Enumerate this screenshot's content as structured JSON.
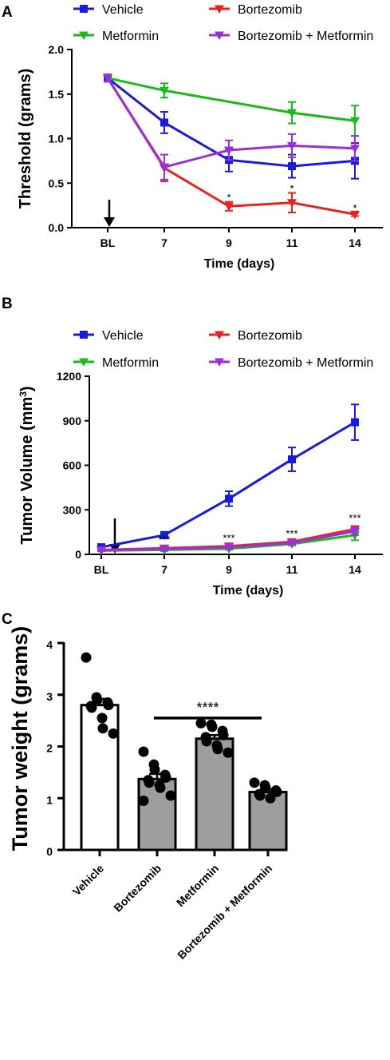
{
  "chart_data": [
    {
      "panel": "A",
      "type": "line",
      "categories": [
        "BL",
        "7",
        "9",
        "11",
        "14"
      ],
      "xlabel": "Time (days)",
      "ylabel": "Threshold (grams)",
      "ylim": [
        0,
        2.0
      ],
      "yticks": [
        0.0,
        0.5,
        1.0,
        1.5,
        2.0
      ],
      "ytick_labels": [
        "0.0",
        "0.5",
        "1.0",
        "1.5",
        "2.0"
      ],
      "legend": "top",
      "arrow_at": "BL",
      "series": [
        {
          "name": "Vehicle",
          "color": "#1a1adb",
          "marker": "square",
          "values": [
            1.68,
            1.18,
            0.76,
            0.69,
            0.75
          ],
          "errors": [
            0.04,
            0.12,
            0.13,
            0.13,
            0.2
          ]
        },
        {
          "name": "Bortezomib",
          "color": "#e8231f",
          "marker": "triangle-down",
          "values": [
            1.68,
            0.67,
            0.24,
            0.28,
            0.15
          ],
          "errors": [
            0.04,
            0.15,
            0.05,
            0.11,
            0.02
          ]
        },
        {
          "name": "Metformin",
          "color": "#1db81d",
          "marker": "triangle-down",
          "values": [
            1.68,
            1.54,
            null,
            1.29,
            1.2
          ],
          "errors": [
            0.04,
            0.08,
            null,
            0.12,
            0.17
          ]
        },
        {
          "name": "Bortezomib + Metformin",
          "color": "#9b30d9",
          "marker": "triangle-down",
          "values": [
            1.68,
            0.68,
            0.87,
            0.92,
            0.89
          ],
          "errors": [
            0.04,
            0.14,
            0.11,
            0.13,
            0.14
          ]
        }
      ],
      "annotations": [
        {
          "x": "9",
          "y": 0.3,
          "text": "*"
        },
        {
          "x": "11",
          "y": 0.4,
          "text": "*"
        },
        {
          "x": "14",
          "y": 0.18,
          "text": "*"
        }
      ]
    },
    {
      "panel": "B",
      "type": "line",
      "categories": [
        "BL",
        "7",
        "9",
        "11",
        "14"
      ],
      "xlabel": "Time (days)",
      "ylabel": "Tumor Volume (mm",
      "ylabel_sup": "3",
      "ylabel_close": ")",
      "ylim": [
        0,
        1200
      ],
      "yticks": [
        0,
        300,
        600,
        900,
        1200
      ],
      "ytick_labels": [
        "0",
        "300",
        "600",
        "900",
        "1200"
      ],
      "legend": "top",
      "arrow_at": "BL",
      "series": [
        {
          "name": "Vehicle",
          "color": "#1a1adb",
          "marker": "square",
          "values": [
            48,
            130,
            375,
            640,
            890
          ],
          "errors": [
            8,
            12,
            50,
            80,
            120
          ]
        },
        {
          "name": "Bortezomib",
          "color": "#e8231f",
          "marker": "triangle-down",
          "values": [
            30,
            42,
            55,
            85,
            170
          ],
          "errors": [
            5,
            8,
            10,
            12,
            20
          ]
        },
        {
          "name": "Metformin",
          "color": "#1db81d",
          "marker": "triangle-down",
          "values": [
            25,
            30,
            38,
            70,
            130
          ],
          "errors": [
            5,
            8,
            8,
            10,
            35
          ]
        },
        {
          "name": "Bortezomib + Metformin",
          "color": "#9b30d9",
          "marker": "triangle-down",
          "values": [
            28,
            36,
            48,
            78,
            155
          ],
          "errors": [
            5,
            8,
            8,
            10,
            25
          ]
        }
      ],
      "annotations": [
        {
          "x": "7",
          "y": 75,
          "text": "***"
        },
        {
          "x": "9",
          "y": 85,
          "text": "***"
        },
        {
          "x": "11",
          "y": 115,
          "text": "***"
        },
        {
          "x": "14",
          "y": 220,
          "text": "***"
        }
      ]
    },
    {
      "panel": "C",
      "type": "bar",
      "categories": [
        "Vehicle",
        "Bortezomib",
        "Metformin",
        "Bortezomib + Metformin"
      ],
      "ylabel": "Tumor weight (grams)",
      "ylim": [
        0,
        4
      ],
      "yticks": [
        0,
        1,
        2,
        3,
        4
      ],
      "ytick_labels": [
        "0",
        "1",
        "2",
        "3",
        "4"
      ],
      "bar_colors": [
        "#ffffff",
        "#9e9e9e",
        "#9e9e9e",
        "#9e9e9e"
      ],
      "values": [
        2.8,
        1.37,
        2.15,
        1.12
      ],
      "errors": [
        0.12,
        0.1,
        0.07,
        0.05
      ],
      "points": [
        [
          3.72,
          2.95,
          2.9,
          2.85,
          2.8,
          2.78,
          2.75,
          2.55,
          2.35,
          2.25
        ],
        [
          1.9,
          1.65,
          1.55,
          1.45,
          1.4,
          1.35,
          1.3,
          1.25,
          1.2,
          1.05,
          0.95
        ],
        [
          2.45,
          2.42,
          2.38,
          2.3,
          2.22,
          2.18,
          2.1,
          2.02,
          1.95,
          1.88
        ],
        [
          1.3,
          1.25,
          1.2,
          1.15,
          1.12,
          1.08,
          1.05,
          1.0
        ]
      ],
      "significance": {
        "text": "****",
        "from": "Bortezomib",
        "to": "Bortezomib + Metformin",
        "y": 2.55
      }
    }
  ]
}
